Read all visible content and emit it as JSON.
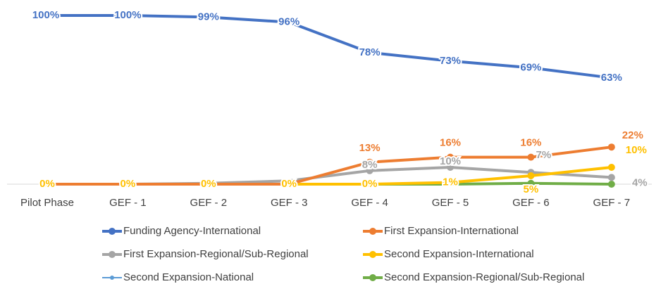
{
  "chart_data": {
    "type": "line",
    "categories": [
      "Pilot Phase",
      "GEF - 1",
      "GEF - 2",
      "GEF - 3",
      "GEF - 4",
      "GEF - 5",
      "GEF - 6",
      "GEF - 7"
    ],
    "ylim": [
      0,
      100
    ],
    "series": [
      {
        "name": "Funding Agency-International",
        "color": "#4472c4",
        "values": [
          100,
          100,
          99,
          96,
          78,
          73,
          69,
          63
        ],
        "value_labels": [
          "100%",
          "100%",
          "99%",
          "96%",
          "78%",
          "73%",
          "69%",
          "63%"
        ]
      },
      {
        "name": "First Expansion-International",
        "color": "#ed7d31",
        "values": [
          0,
          0,
          0,
          0,
          13,
          16,
          16,
          22
        ],
        "value_labels": [
          null,
          null,
          null,
          null,
          "13%",
          "16%",
          "16%",
          "22%"
        ]
      },
      {
        "name": "First Expansion-Regional/Sub-Regional",
        "color": "#a5a5a5",
        "values": [
          0,
          0,
          0.5,
          2,
          8,
          10,
          7,
          4
        ],
        "value_labels": [
          null,
          null,
          null,
          null,
          "8%",
          "10%",
          "7%",
          "4%"
        ]
      },
      {
        "name": "Second Expansion-International",
        "color": "#ffc000",
        "values": [
          0,
          0,
          0,
          0,
          0,
          1,
          5,
          10
        ],
        "value_labels": [
          "0%",
          "0%",
          "0%",
          "0%",
          "0%",
          "1%",
          "5%",
          "10%"
        ]
      },
      {
        "name": "Second Expansion-National",
        "color": "#5b9bd5",
        "values": [
          0,
          0,
          0,
          0,
          0,
          0,
          0,
          0
        ]
      },
      {
        "name": "Second Expansion-Regional/Sub-Regional",
        "color": "#70ad47",
        "values": [
          0,
          0,
          0,
          0,
          0,
          0,
          0.5,
          0
        ]
      }
    ]
  }
}
